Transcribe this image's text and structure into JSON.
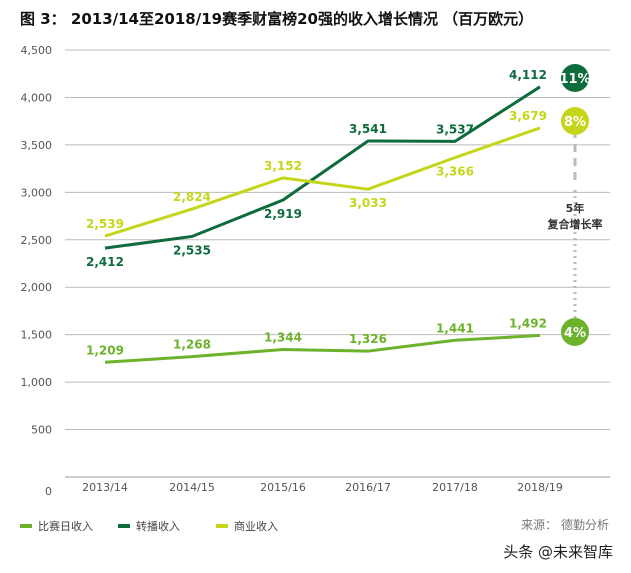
{
  "title": "图 3： 2013/14至2018/19赛季财富榜20强的收入增长情况 （百万欧元）",
  "chart_data": {
    "type": "line",
    "title": "2013/14至2018/19赛季财富榜20强的收入增长情况 （百万欧元）",
    "categories": [
      "2013/14",
      "2014/15",
      "2015/16",
      "2016/17",
      "2017/18",
      "2018/19"
    ],
    "ylim": [
      0,
      4500
    ],
    "yticks": [
      0,
      500,
      1000,
      1500,
      2000,
      2500,
      3000,
      3500,
      4000,
      4500
    ],
    "ytick_labels": [
      "0",
      "500",
      "1,000",
      "1,500",
      "2,000",
      "2,500",
      "3,000",
      "3,500",
      "4,000",
      "4,500"
    ],
    "grid": true,
    "legend_position": "bottom-left",
    "series": [
      {
        "name": "比赛日收入",
        "color": "#6cb22a",
        "values": [
          1209,
          1268,
          1344,
          1326,
          1441,
          1492
        ],
        "labels": [
          "1,209",
          "1,268",
          "1,344",
          "1,326",
          "1,441",
          "1,492"
        ],
        "cagr": "4%"
      },
      {
        "name": "转播收入",
        "color": "#0d6b3c",
        "values": [
          2412,
          2535,
          2919,
          3541,
          3537,
          4112
        ],
        "labels": [
          "2,412",
          "2,535",
          "2,919",
          "3,541",
          "3,537",
          "4,112"
        ],
        "cagr": "11%"
      },
      {
        "name": "商业收入",
        "color": "#c5d61a",
        "values": [
          2539,
          2824,
          3152,
          3033,
          3366,
          3679
        ],
        "labels": [
          "2,539",
          "2,824",
          "3,152",
          "3,033",
          "3,366",
          "3,679"
        ],
        "cagr": "8%"
      }
    ],
    "annotation": {
      "line1": "5年",
      "line2": "复合增长率"
    }
  },
  "source": "来源： 德勤分析",
  "watermark": "头条 @未来智库"
}
